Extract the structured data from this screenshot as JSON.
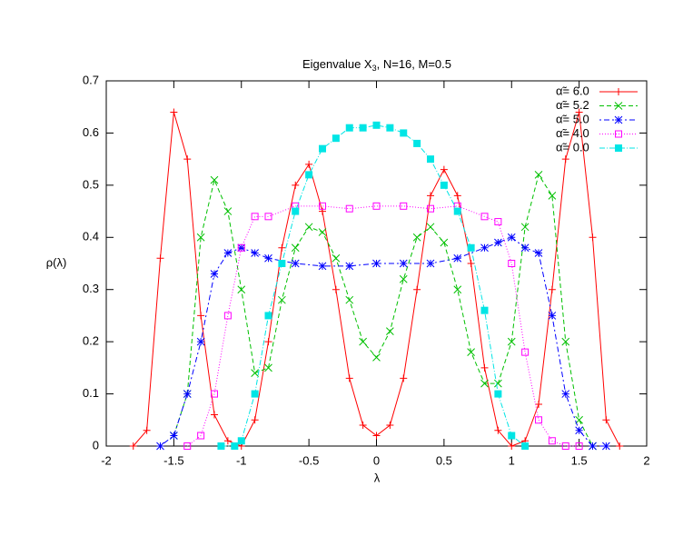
{
  "chart_data": {
    "type": "line",
    "title": "Eigenvalue X",
    "title_subscript": "3",
    "title_suffix": ", N=16, M=0.5",
    "x_label": "λ",
    "y_label": "ρ(λ)",
    "xlim": [
      -2,
      2
    ],
    "xticks": [
      -2,
      -1.5,
      -1,
      -0.5,
      0,
      0.5,
      1,
      1.5,
      2
    ],
    "ylim": [
      0,
      0.7
    ],
    "yticks": [
      0,
      0.1,
      0.2,
      0.3,
      0.4,
      0.5,
      0.6,
      0.7
    ],
    "grid": false,
    "legend": "top-right",
    "series": [
      {
        "name": "α̃= 6.0",
        "color": "#ff0000",
        "x": [
          -1.8,
          -1.7,
          -1.6,
          -1.5,
          -1.4,
          -1.3,
          -1.2,
          -1.1,
          -1.0,
          -0.9,
          -0.8,
          -0.7,
          -0.6,
          -0.5,
          -0.4,
          -0.3,
          -0.2,
          -0.1,
          0,
          0.1,
          0.2,
          0.3,
          0.4,
          0.5,
          0.6,
          0.7,
          0.8,
          0.9,
          1.0,
          1.1,
          1.2,
          1.3,
          1.4,
          1.5,
          1.6,
          1.7,
          1.8
        ],
        "values": [
          0,
          0.03,
          0.36,
          0.64,
          0.55,
          0.25,
          0.06,
          0.01,
          0,
          0.05,
          0.2,
          0.38,
          0.5,
          0.54,
          0.45,
          0.3,
          0.13,
          0.04,
          0.02,
          0.04,
          0.13,
          0.3,
          0.48,
          0.53,
          0.48,
          0.35,
          0.15,
          0.03,
          0,
          0.01,
          0.08,
          0.3,
          0.55,
          0.64,
          0.4,
          0.05,
          0
        ]
      },
      {
        "name": "α̃= 5.2",
        "color": "#00c000",
        "x": [
          -1.5,
          -1.4,
          -1.3,
          -1.2,
          -1.1,
          -1.0,
          -0.9,
          -0.8,
          -0.7,
          -0.6,
          -0.5,
          -0.4,
          -0.3,
          -0.2,
          -0.1,
          0,
          0.1,
          0.2,
          0.3,
          0.4,
          0.5,
          0.6,
          0.7,
          0.8,
          0.9,
          1.0,
          1.1,
          1.2,
          1.3,
          1.4,
          1.5,
          1.6
        ],
        "values": [
          0.02,
          0.1,
          0.4,
          0.51,
          0.45,
          0.3,
          0.14,
          0.15,
          0.28,
          0.38,
          0.42,
          0.41,
          0.36,
          0.28,
          0.2,
          0.17,
          0.22,
          0.32,
          0.4,
          0.42,
          0.39,
          0.3,
          0.18,
          0.12,
          0.12,
          0.2,
          0.42,
          0.52,
          0.48,
          0.2,
          0.05,
          0
        ]
      },
      {
        "name": "α̃= 5.0",
        "color": "#0000ff",
        "x": [
          -1.6,
          -1.5,
          -1.4,
          -1.3,
          -1.2,
          -1.1,
          -1.0,
          -0.9,
          -0.8,
          -0.6,
          -0.4,
          -0.2,
          0,
          0.2,
          0.4,
          0.6,
          0.8,
          0.9,
          1.0,
          1.1,
          1.2,
          1.3,
          1.4,
          1.5,
          1.6,
          1.7
        ],
        "values": [
          0,
          0.02,
          0.1,
          0.2,
          0.33,
          0.37,
          0.38,
          0.37,
          0.36,
          0.35,
          0.345,
          0.345,
          0.35,
          0.35,
          0.35,
          0.36,
          0.38,
          0.39,
          0.4,
          0.38,
          0.37,
          0.25,
          0.1,
          0.03,
          0,
          0
        ]
      },
      {
        "name": "α̃= 4.0",
        "color": "#ff00ff",
        "x": [
          -1.4,
          -1.3,
          -1.2,
          -1.1,
          -1.0,
          -0.9,
          -0.8,
          -0.6,
          -0.4,
          -0.2,
          0,
          0.2,
          0.4,
          0.6,
          0.8,
          0.9,
          1.0,
          1.1,
          1.2,
          1.3,
          1.4,
          1.5
        ],
        "values": [
          0,
          0.02,
          0.1,
          0.25,
          0.38,
          0.44,
          0.44,
          0.46,
          0.46,
          0.455,
          0.46,
          0.46,
          0.455,
          0.46,
          0.44,
          0.43,
          0.35,
          0.18,
          0.05,
          0.01,
          0,
          0
        ]
      },
      {
        "name": "α̃= 0.0",
        "color": "#00e5e5",
        "x": [
          -1.15,
          -1.05,
          -1.0,
          -0.9,
          -0.8,
          -0.7,
          -0.6,
          -0.5,
          -0.4,
          -0.3,
          -0.2,
          -0.1,
          0,
          0.1,
          0.2,
          0.3,
          0.4,
          0.5,
          0.6,
          0.7,
          0.8,
          0.9,
          1.0,
          1.1
        ],
        "values": [
          0,
          0,
          0.01,
          0.1,
          0.25,
          0.35,
          0.45,
          0.52,
          0.57,
          0.59,
          0.61,
          0.61,
          0.615,
          0.61,
          0.6,
          0.58,
          0.55,
          0.5,
          0.45,
          0.38,
          0.26,
          0.1,
          0.02,
          0
        ]
      }
    ]
  }
}
